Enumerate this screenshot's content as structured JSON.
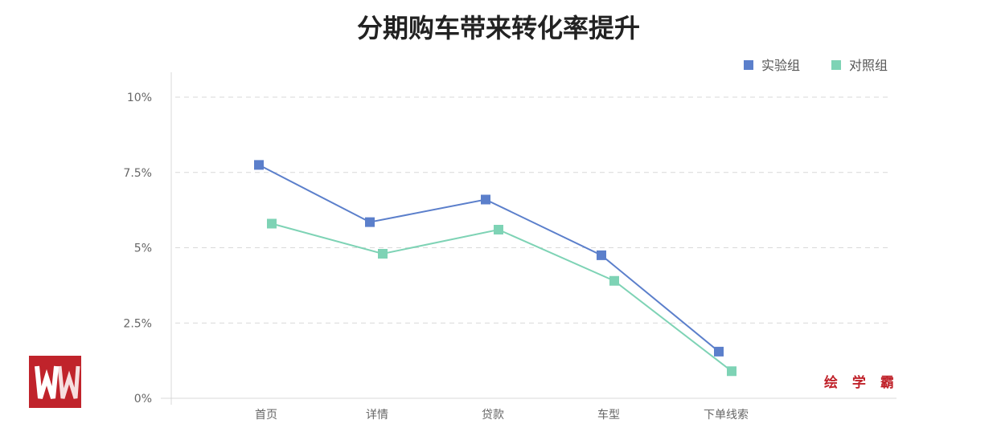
{
  "chart_data": {
    "type": "line",
    "title": "分期购车带来转化率提升",
    "categories": [
      "首页",
      "详情",
      "贷款",
      "车型",
      "下单线索"
    ],
    "y_ticks": [
      "0%",
      "2.5%",
      "5%",
      "7.5%",
      "10%"
    ],
    "ylim": [
      0,
      10
    ],
    "grid": true,
    "legend_position": "top-right",
    "series": [
      {
        "name": "实验组",
        "color": "#5b7fcb",
        "values": [
          7.75,
          5.85,
          6.6,
          4.75,
          1.55
        ]
      },
      {
        "name": "对照组",
        "color": "#7ed3b5",
        "values": [
          5.8,
          4.8,
          5.6,
          3.9,
          0.9
        ]
      }
    ]
  },
  "watermark": {
    "text": "绘 学 霸",
    "logo_color": "#c0232b"
  }
}
